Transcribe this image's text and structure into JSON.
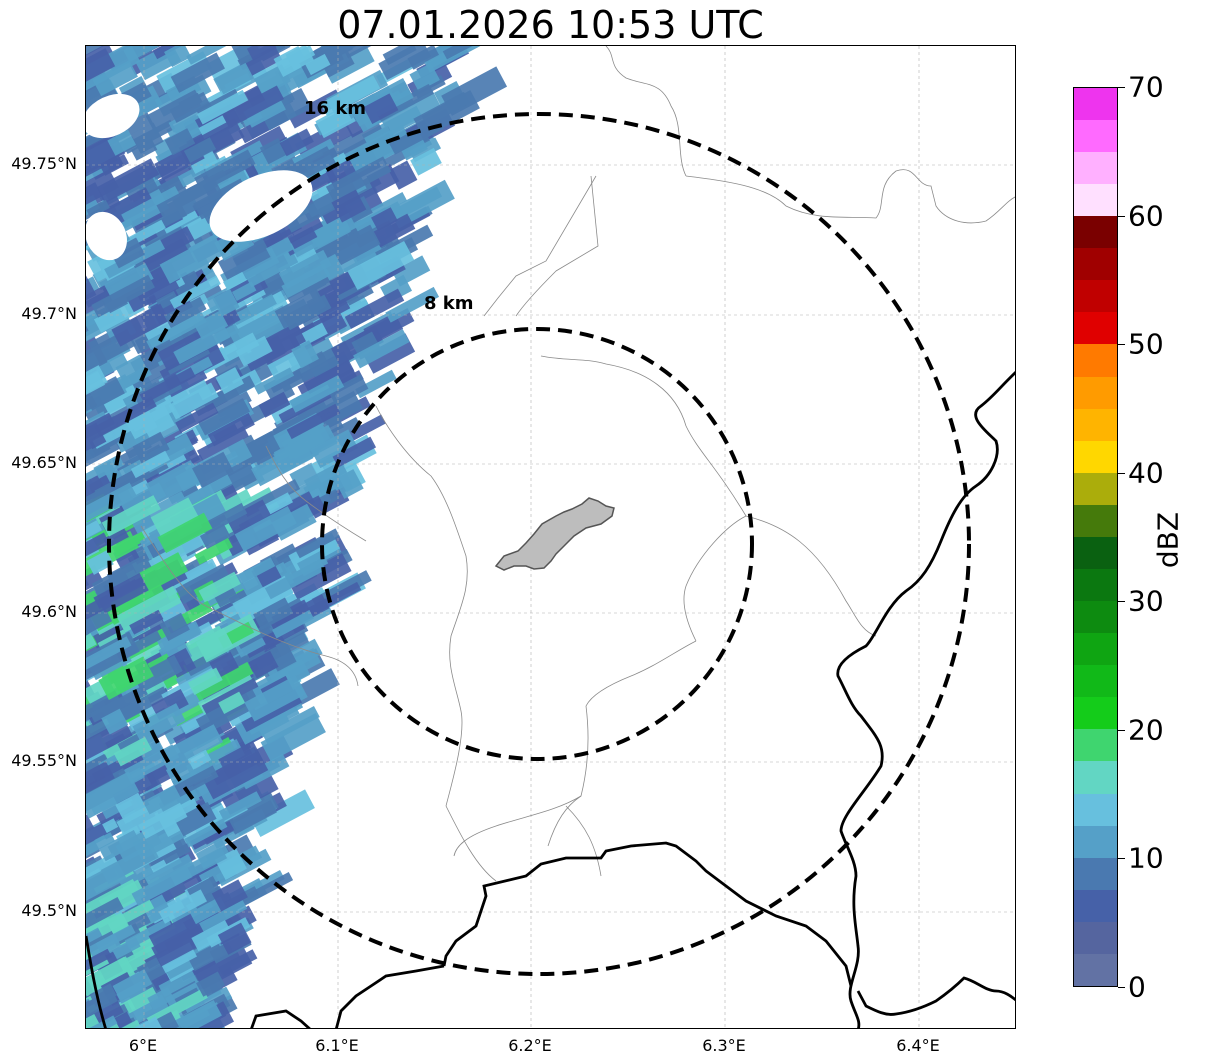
{
  "title": "07.01.2026 10:53 UTC",
  "latitude_labels": [
    "49.75°N",
    "49.7°N",
    "49.65°N",
    "49.6°N",
    "49.55°N",
    "49.5°N"
  ],
  "longitude_labels": [
    "6°E",
    "6.1°E",
    "6.2°E",
    "6.3°E",
    "6.4°E"
  ],
  "range_rings": [
    {
      "label": "8 km"
    },
    {
      "label": "16 km"
    }
  ],
  "colorbar": {
    "label": "dBZ",
    "tick_labels": [
      "0",
      "10",
      "20",
      "30",
      "40",
      "50",
      "60",
      "70"
    ],
    "min": 0,
    "max": 70,
    "colors": [
      "#6272a4",
      "#55659f",
      "#4661a8",
      "#4a79b0",
      "#55a0c8",
      "#67c0de",
      "#62d6c3",
      "#3fd56f",
      "#14cc1a",
      "#11b918",
      "#0fa512",
      "#0d8b10",
      "#0b7810",
      "#0a6111",
      "#457a0b",
      "#abad0b",
      "#ffd700",
      "#ffb400",
      "#ff9b00",
      "#ff7a00",
      "#e00000",
      "#c00000",
      "#a00000",
      "#7a0000",
      "#ffe0ff",
      "#ffb0ff",
      "#ff6aff",
      "#ee34ee"
    ]
  },
  "map_colors": {
    "echo_primary": "#4a79b0",
    "echo_dark": "#4661a8",
    "echo_light": "#55a0c8",
    "echo_cyan": "#67c0de",
    "echo_teal": "#62d6c3",
    "echo_green": "#3fd56f",
    "border": "#000000",
    "commune_lines": "#8a8a8a",
    "city_fill": "#bdbdbd"
  }
}
